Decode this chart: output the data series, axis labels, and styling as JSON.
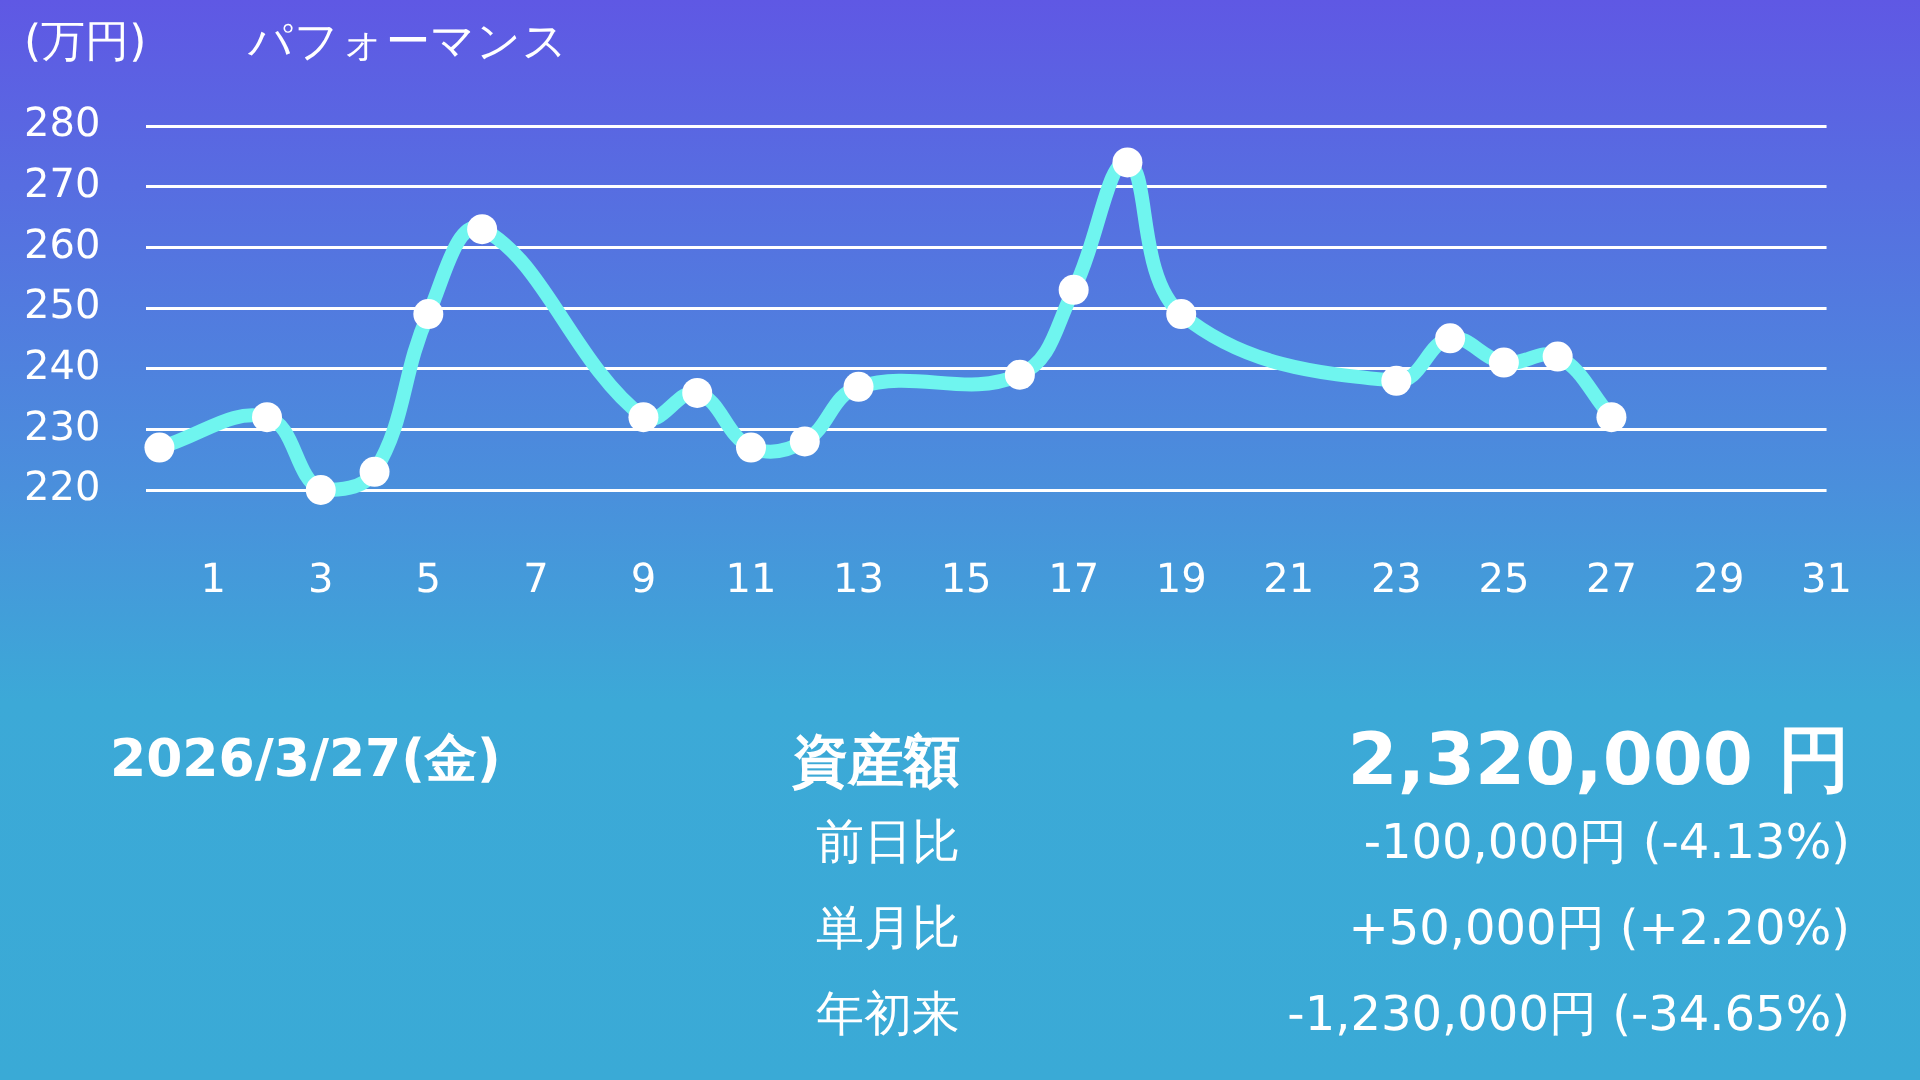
{
  "chart_data": {
    "type": "line",
    "title": "パフォーマンス",
    "ylabel": "(万円)",
    "x": [
      0,
      2,
      3,
      4,
      5,
      6,
      9,
      10,
      11,
      12,
      13,
      16,
      17,
      18,
      19,
      23,
      24,
      25,
      26,
      27
    ],
    "series": [
      {
        "color": "#6ff5ef",
        "values": [
          227,
          232,
          220,
          223,
          249,
          263,
          232,
          236,
          227,
          228,
          237,
          239,
          253,
          274,
          249,
          238,
          245,
          241,
          242,
          232
        ]
      }
    ],
    "xlim": [
      -0.25,
      31
    ],
    "xticks": [
      1,
      3,
      5,
      7,
      9,
      11,
      13,
      15,
      17,
      19,
      21,
      23,
      25,
      27,
      29,
      31
    ],
    "ylim": [
      220,
      280
    ],
    "yticks": [
      220,
      230,
      240,
      250,
      260,
      270,
      280
    ],
    "grid": "y",
    "marker": "circle",
    "annotations": [
      "2026/3/27(金)",
      "資産額",
      "2,320,000 円",
      "前日比",
      "-100,000円 (-4.13%)",
      "単月比",
      "+50,000円 (+2.20%)",
      "年初来",
      "-1,230,000円 (-34.65%)"
    ]
  }
}
